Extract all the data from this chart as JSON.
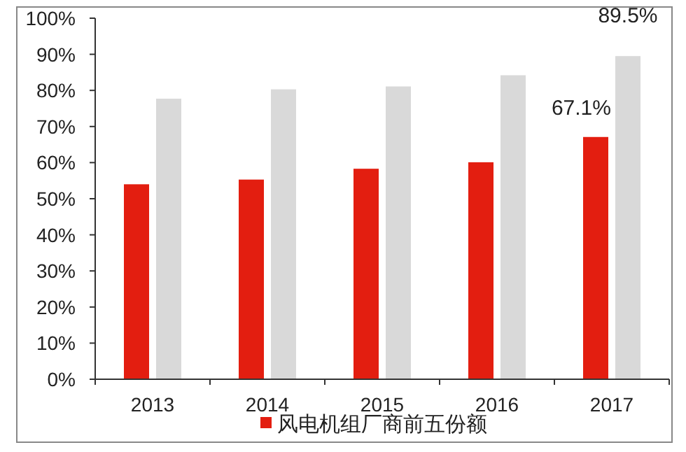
{
  "chart_data": {
    "type": "bar",
    "categories": [
      "2013",
      "2014",
      "2015",
      "2016",
      "2017"
    ],
    "series": [
      {
        "name": "风电机组厂商前五份额",
        "color": "#e31e10",
        "values": [
          54.0,
          55.3,
          58.3,
          60.1,
          67.1
        ],
        "value_labels": [
          null,
          null,
          null,
          null,
          "67.1%"
        ]
      },
      {
        "color": "#d9d9d9",
        "values": [
          77.7,
          80.3,
          81.1,
          84.2,
          89.5
        ],
        "value_labels": [
          null,
          null,
          null,
          null,
          "89.5%"
        ]
      }
    ],
    "ylim": [
      0,
      100
    ],
    "yticks": [
      {
        "value": 0,
        "label": "0%"
      },
      {
        "value": 10,
        "label": "10%"
      },
      {
        "value": 20,
        "label": "20%"
      },
      {
        "value": 30,
        "label": "30%"
      },
      {
        "value": 40,
        "label": "40%"
      },
      {
        "value": 50,
        "label": "50%"
      },
      {
        "value": 60,
        "label": "60%"
      },
      {
        "value": 70,
        "label": "70%"
      },
      {
        "value": 80,
        "label": "80%"
      },
      {
        "value": 90,
        "label": "90%"
      },
      {
        "value": 100,
        "label": "100%"
      }
    ],
    "grid": false,
    "legend": "bottom"
  }
}
